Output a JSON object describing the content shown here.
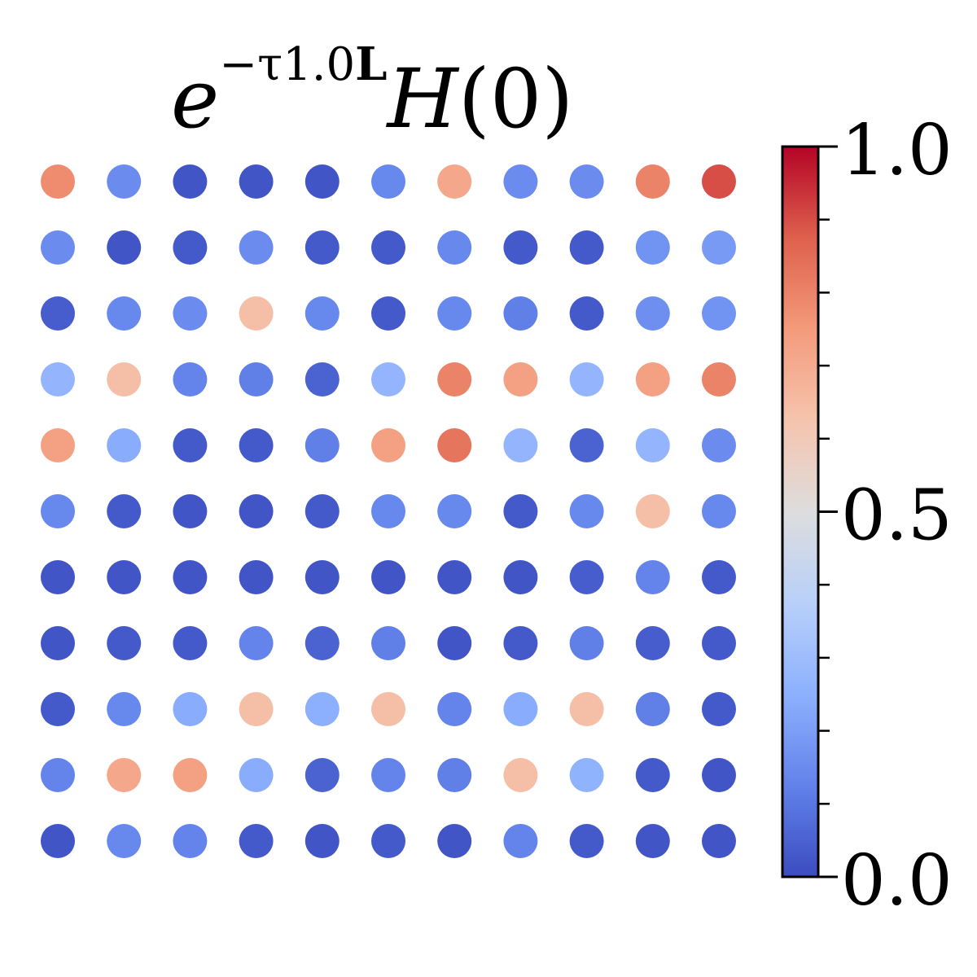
{
  "chart_data": {
    "type": "heatmap",
    "rows": 11,
    "cols": 11,
    "title": {
      "base": "e",
      "superscript_prefix": "−τ1.0",
      "superscript_bold": "L",
      "function": "H",
      "argument": "(0)"
    },
    "colormap": "coolwarm",
    "colorbar": {
      "min": 0.0,
      "max": 1.0,
      "ticks": [
        {
          "value": 0.0,
          "label": "0.0"
        },
        {
          "value": 0.5,
          "label": "0.5"
        },
        {
          "value": 1.0,
          "label": "1.0"
        }
      ],
      "minor_tick_step": 0.1,
      "placement": "right"
    },
    "grid": false,
    "values": [
      [
        0.78,
        0.15,
        0.02,
        0.02,
        0.02,
        0.14,
        0.71,
        0.15,
        0.15,
        0.8,
        0.9
      ],
      [
        0.15,
        0.02,
        0.03,
        0.15,
        0.03,
        0.03,
        0.14,
        0.03,
        0.03,
        0.17,
        0.19
      ],
      [
        0.04,
        0.14,
        0.15,
        0.64,
        0.14,
        0.03,
        0.14,
        0.12,
        0.03,
        0.16,
        0.17
      ],
      [
        0.27,
        0.64,
        0.13,
        0.12,
        0.05,
        0.27,
        0.8,
        0.73,
        0.27,
        0.73,
        0.8
      ],
      [
        0.73,
        0.24,
        0.03,
        0.03,
        0.12,
        0.73,
        0.83,
        0.27,
        0.05,
        0.27,
        0.15
      ],
      [
        0.14,
        0.03,
        0.02,
        0.02,
        0.03,
        0.14,
        0.14,
        0.03,
        0.14,
        0.64,
        0.14
      ],
      [
        0.02,
        0.02,
        0.02,
        0.02,
        0.02,
        0.02,
        0.02,
        0.02,
        0.04,
        0.13,
        0.03
      ],
      [
        0.02,
        0.03,
        0.03,
        0.13,
        0.05,
        0.12,
        0.02,
        0.03,
        0.12,
        0.04,
        0.03
      ],
      [
        0.03,
        0.14,
        0.24,
        0.64,
        0.25,
        0.64,
        0.13,
        0.24,
        0.64,
        0.12,
        0.03
      ],
      [
        0.13,
        0.71,
        0.73,
        0.24,
        0.05,
        0.13,
        0.12,
        0.64,
        0.26,
        0.03,
        0.02
      ],
      [
        0.02,
        0.14,
        0.13,
        0.03,
        0.02,
        0.03,
        0.02,
        0.13,
        0.03,
        0.02,
        0.02
      ]
    ]
  }
}
